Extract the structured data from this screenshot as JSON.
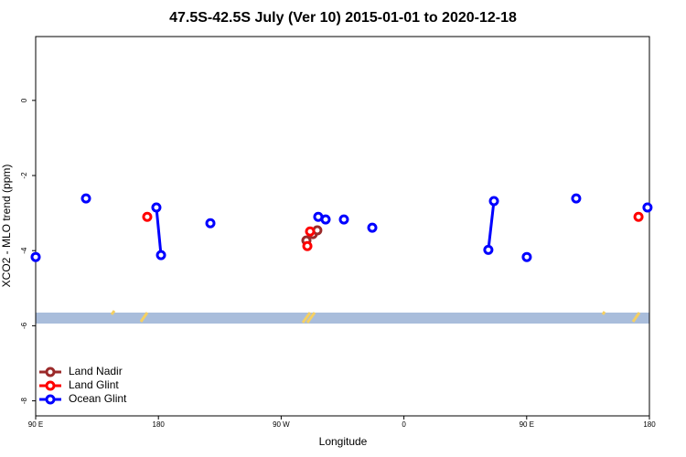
{
  "chart_data": {
    "type": "line",
    "title": "47.5S-42.5S July (Ver 10)   2015-01-01 to 2020-12-18",
    "x_label": "Longitude",
    "y_label": "XCO2 - MLO trend (ppm)",
    "xlim": [
      90,
      540
    ],
    "ylim": [
      -8.4,
      1.7
    ],
    "xticks": [
      {
        "value": 90,
        "label": "90 E"
      },
      {
        "value": 180,
        "label": "180"
      },
      {
        "value": 270,
        "label": "90 W"
      },
      {
        "value": 360,
        "label": "0"
      },
      {
        "value": 450,
        "label": "90 E"
      },
      {
        "value": 540,
        "label": "180"
      }
    ],
    "yticks": [
      0,
      -2,
      -4,
      -6,
      -8
    ],
    "legend": "bottom-left",
    "series": [
      {
        "name": "Land Nadir",
        "color": "#9b2a2a",
        "x": [
          288.5,
          null,
          293.2,
          null,
          296.5
        ],
        "values": [
          -3.73,
          null,
          -3.56,
          null,
          -3.46
        ]
      },
      {
        "name": "Land Glint",
        "color": "#ff0000",
        "x": [
          171.8,
          null,
          291.2,
          null,
          289.2,
          null,
          532
        ],
        "values": [
          -3.1,
          null,
          -3.49,
          null,
          -3.88,
          null,
          -3.1
        ]
      },
      {
        "name": "Ocean Glint",
        "color": "#0000ff",
        "x": [
          90,
          null,
          126.9,
          null,
          178.5,
          181.9,
          null,
          218.1,
          null,
          297.2,
          null,
          302.6,
          null,
          316,
          null,
          336.8,
          null,
          421.9,
          426,
          null,
          450.1,
          null,
          486.3,
          null,
          538.6
        ],
        "values": [
          -4.17,
          null,
          -2.61,
          null,
          -2.85,
          -4.12,
          null,
          -3.27,
          null,
          -3.1,
          null,
          -3.17,
          null,
          -3.17,
          null,
          -3.39,
          null,
          -3.98,
          -2.68,
          null,
          -4.17,
          null,
          -2.61,
          null,
          -2.85
        ]
      }
    ]
  }
}
